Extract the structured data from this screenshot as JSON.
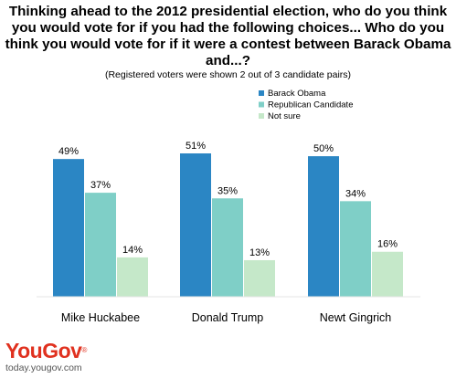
{
  "title": "Thinking ahead to the 2012 presidential election, who do you think you would vote for if you had the following choices... Who do you think you would vote for if it were a contest between Barack Obama and...?",
  "subtitle": "(Registered voters were shown 2 out of 3 candidate pairs)",
  "colors": {
    "Barack Obama": "#2b86c4",
    "Republican Candidate": "#7fcfc7",
    "Not sure": "#c5e8c9"
  },
  "chart_data": {
    "type": "bar",
    "title": "Thinking ahead to the 2012 presidential election, who do you think you would vote for if you had the following choices... Who do you think you would vote for if it were a contest between Barack Obama and...?",
    "subtitle": "(Registered voters were shown 2 out of 3 candidate pairs)",
    "categories": [
      "Mike Huckabee",
      "Donald Trump",
      "Newt Gingrich"
    ],
    "series": [
      {
        "name": "Barack Obama",
        "values": [
          49,
          51,
          50
        ]
      },
      {
        "name": "Republican Candidate",
        "values": [
          37,
          35,
          34
        ]
      },
      {
        "name": "Not sure",
        "values": [
          14,
          13,
          16
        ]
      }
    ],
    "value_suffix": "%",
    "xlabel": "",
    "ylabel": "",
    "ylim": [
      0,
      51
    ],
    "grid": false,
    "legend": "top-right"
  },
  "footer": {
    "logo_text": "YouGov",
    "logo_mark": "®",
    "site": "today.yougov.com"
  }
}
